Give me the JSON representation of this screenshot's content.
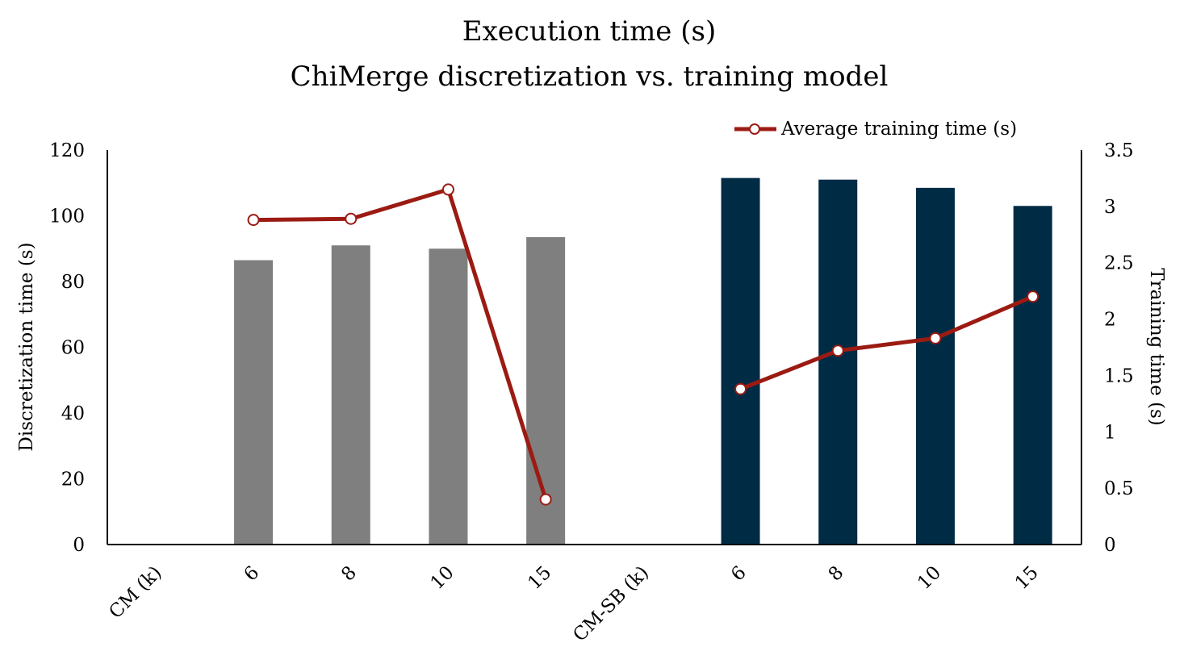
{
  "chart_data": {
    "type": "bar",
    "title": "Execution time (s)",
    "subtitle": "ChiMerge discretization vs. training model",
    "categories": [
      "CM (k)",
      "6",
      "8",
      "10",
      "15",
      "CM-SB (k)",
      "6",
      "8",
      "10",
      "15"
    ],
    "y_left_label": "Discretization time (s)",
    "y_right_label": "Training time (s)",
    "y_left_lim": [
      0,
      120
    ],
    "y_right_lim": [
      0,
      3.5
    ],
    "y_left_ticks": [
      "0",
      "20",
      "40",
      "60",
      "80",
      "100",
      "120"
    ],
    "y_right_ticks": [
      "0",
      "0.5",
      "1",
      "1.5",
      "2",
      "2.5",
      "3",
      "3.5"
    ],
    "bar_values": [
      null,
      86.5,
      91,
      90,
      93.5,
      null,
      111.5,
      111,
      108.5,
      103
    ],
    "bar_colors": [
      null,
      "#7f7f7f",
      "#7f7f7f",
      "#7f7f7f",
      "#7f7f7f",
      null,
      "#002b45",
      "#002b45",
      "#002b45",
      "#002b45"
    ],
    "line_series": {
      "name": "Average training time (s)",
      "values": [
        null,
        2.88,
        2.89,
        3.15,
        0.4,
        null,
        1.38,
        1.72,
        1.83,
        2.2
      ],
      "color": "#9b1b13"
    },
    "legend_position": "top-right",
    "grid": false
  }
}
